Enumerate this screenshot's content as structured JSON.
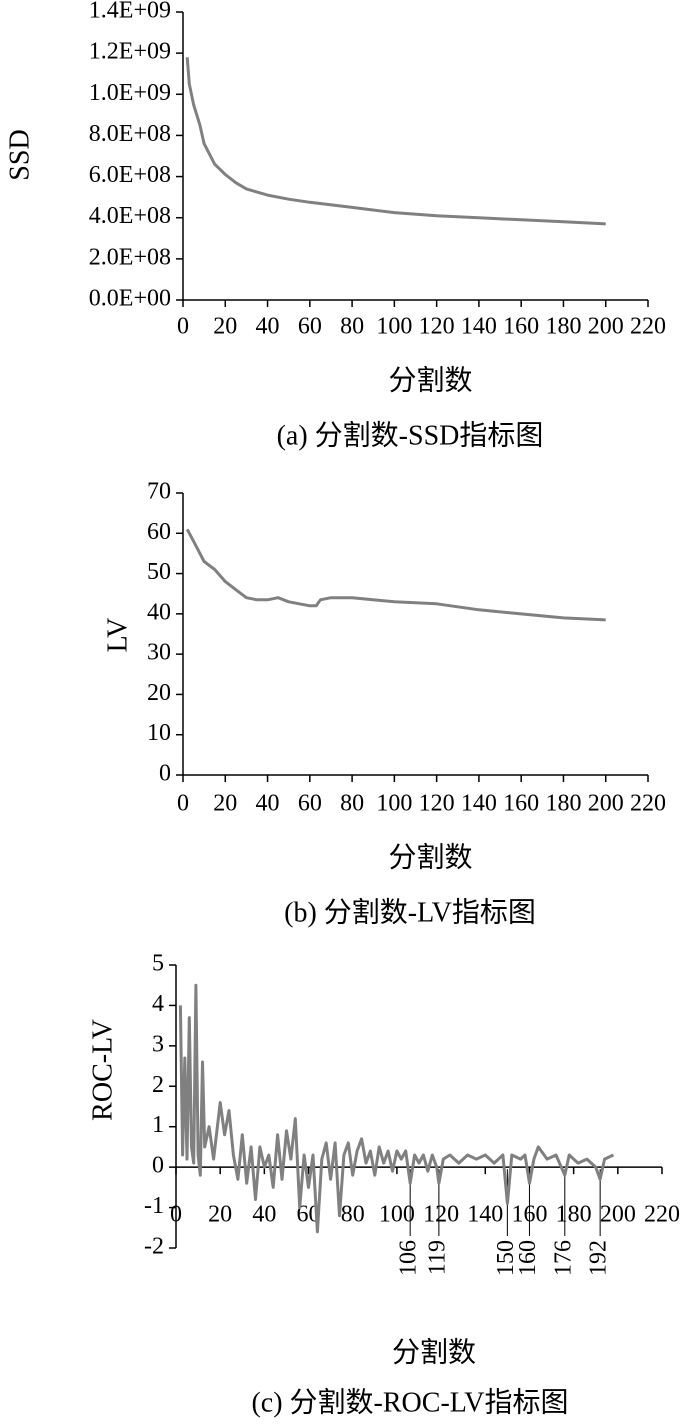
{
  "chart_data": [
    {
      "type": "line",
      "ylabel": "SSD",
      "xlabel": "分割数",
      "caption": "(a) 分割数-SSD指标图",
      "xlim": [
        0,
        220
      ],
      "xticks": [
        0,
        20,
        40,
        60,
        80,
        100,
        120,
        140,
        160,
        180,
        200,
        220
      ],
      "ylim": [
        0,
        1400000000
      ],
      "yticks": [
        {
          "value": 0,
          "label": "0.0E+00"
        },
        {
          "value": 200000000,
          "label": "2.0E+08"
        },
        {
          "value": 400000000,
          "label": "4.0E+08"
        },
        {
          "value": 600000000,
          "label": "6.0E+08"
        },
        {
          "value": 800000000,
          "label": "8.0E+08"
        },
        {
          "value": 1000000000,
          "label": "1.0E+09"
        },
        {
          "value": 1200000000,
          "label": "1.2E+09"
        },
        {
          "value": 1400000000,
          "label": "1.4E+09"
        }
      ],
      "x": [
        2,
        3,
        5,
        8,
        10,
        15,
        20,
        25,
        30,
        40,
        50,
        60,
        80,
        100,
        120,
        140,
        160,
        180,
        200
      ],
      "series": [
        {
          "color": "#808080",
          "values": [
            1180000000,
            1050000000,
            950000000,
            850000000,
            760000000,
            660000000,
            610000000,
            570000000,
            540000000,
            510000000,
            490000000,
            475000000,
            450000000,
            425000000,
            410000000,
            400000000,
            390000000,
            380000000,
            370000000
          ]
        }
      ]
    },
    {
      "type": "line",
      "ylabel": "LV",
      "xlabel": "分割数",
      "caption": "(b) 分割数-LV指标图",
      "xlim": [
        0,
        220
      ],
      "xticks": [
        0,
        20,
        40,
        60,
        80,
        100,
        120,
        140,
        160,
        180,
        200,
        220
      ],
      "ylim": [
        0,
        70
      ],
      "yticks": [
        0,
        10,
        20,
        30,
        40,
        50,
        60,
        70
      ],
      "x": [
        2,
        5,
        10,
        15,
        20,
        25,
        30,
        35,
        40,
        45,
        50,
        55,
        60,
        63,
        65,
        70,
        80,
        90,
        100,
        120,
        140,
        160,
        180,
        200
      ],
      "series": [
        {
          "color": "#808080",
          "values": [
            61,
            58,
            53,
            51,
            48,
            46,
            44,
            43.5,
            43.5,
            44,
            43,
            42.5,
            42,
            42,
            43.5,
            44,
            44,
            43.5,
            43,
            42.5,
            41,
            40,
            39,
            38.5
          ]
        }
      ]
    },
    {
      "type": "line",
      "ylabel": "ROC-LV",
      "xlabel": "分割数",
      "caption": "(c) 分割数-ROC-LV指标图",
      "xlim": [
        0,
        220
      ],
      "xticks": [
        0,
        20,
        40,
        60,
        80,
        100,
        120,
        140,
        160,
        180,
        200,
        220
      ],
      "ylim": [
        -2,
        5
      ],
      "yticks": [
        -2,
        -1,
        0,
        1,
        2,
        3,
        4,
        5
      ],
      "annotations": [
        106,
        119,
        150,
        160,
        176,
        192
      ],
      "x": [
        2,
        3,
        4,
        5,
        6,
        7,
        8,
        9,
        10,
        11,
        12,
        13,
        15,
        17,
        20,
        22,
        24,
        26,
        28,
        30,
        32,
        34,
        36,
        38,
        40,
        42,
        44,
        46,
        48,
        50,
        52,
        54,
        56,
        58,
        60,
        62,
        64,
        66,
        68,
        70,
        72,
        74,
        76,
        78,
        80,
        82,
        84,
        86,
        88,
        90,
        92,
        94,
        96,
        98,
        100,
        102,
        104,
        106,
        108,
        110,
        112,
        114,
        116,
        118,
        119,
        121,
        124,
        128,
        132,
        136,
        140,
        144,
        148,
        150,
        152,
        156,
        158,
        160,
        162,
        164,
        168,
        172,
        176,
        178,
        182,
        186,
        190,
        192,
        194,
        198
      ],
      "series": [
        {
          "color": "#808080",
          "values": [
            4,
            0.3,
            2.7,
            0.2,
            3.7,
            0.5,
            0.1,
            4.5,
            0.3,
            -0.2,
            2.6,
            0.5,
            1.0,
            0.2,
            1.6,
            0.8,
            1.4,
            0.3,
            -0.3,
            0.8,
            -0.4,
            0.5,
            -0.8,
            0.5,
            0.0,
            0.3,
            -0.5,
            0.8,
            -0.3,
            0.9,
            0.2,
            1.2,
            -1.0,
            0.3,
            -0.5,
            0.3,
            -1.6,
            0.2,
            0.6,
            -0.3,
            0.6,
            -1.2,
            0.3,
            0.6,
            -0.2,
            0.4,
            0.7,
            0.1,
            0.4,
            -0.2,
            0.5,
            0.1,
            0.4,
            -0.1,
            0.4,
            0.2,
            0.4,
            -0.4,
            0.3,
            0.1,
            0.3,
            -0.1,
            0.3,
            0.0,
            -0.4,
            0.2,
            0.3,
            0.1,
            0.3,
            0.2,
            0.3,
            0.1,
            0.3,
            -0.9,
            0.3,
            0.2,
            0.3,
            -0.4,
            0.2,
            0.5,
            0.2,
            0.3,
            -0.2,
            0.3,
            0.1,
            0.2,
            0.0,
            -0.3,
            0.2,
            0.3
          ]
        }
      ]
    }
  ]
}
